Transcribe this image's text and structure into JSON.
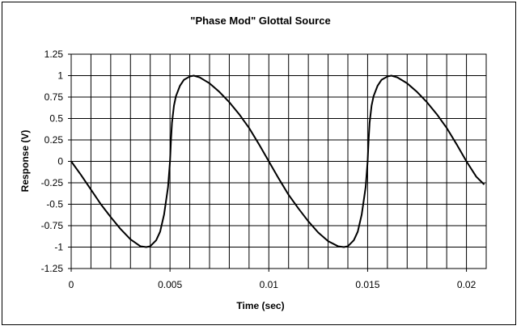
{
  "chart_data": {
    "type": "line",
    "title": "\"Phase Mod\" Glottal Source",
    "xlabel": "Time (sec)",
    "ylabel": "Response (V)",
    "xlim": [
      0,
      0.021
    ],
    "ylim": [
      -1.25,
      1.25
    ],
    "x_ticks": [
      0,
      0.005,
      0.01,
      0.015,
      0.02
    ],
    "x_tick_labels": [
      "0",
      "0.005",
      "0.01",
      "0.015",
      "0.02"
    ],
    "y_ticks": [
      1.25,
      1,
      0.75,
      0.5,
      0.25,
      0,
      -0.25,
      -0.5,
      -0.75,
      -1,
      -1.25
    ],
    "y_tick_labels": [
      "1.25",
      "1",
      "0.75",
      "0.5",
      "0.25",
      "0",
      "-0.25",
      "-0.5",
      "-0.75",
      "-1",
      "-1.25"
    ],
    "grid": true,
    "legend": "none",
    "series": [
      {
        "color": "#000000",
        "x": [
          0,
          0.0005,
          0.001,
          0.0015,
          0.002,
          0.0025,
          0.003,
          0.0035,
          0.0038,
          0.004,
          0.0043,
          0.0045,
          0.0047,
          0.0049,
          0.005,
          0.00505,
          0.0051,
          0.0052,
          0.0053,
          0.0055,
          0.0057,
          0.006,
          0.0062,
          0.0065,
          0.007,
          0.0075,
          0.008,
          0.0085,
          0.009,
          0.0095,
          0.01,
          0.0105,
          0.011,
          0.0115,
          0.012,
          0.0125,
          0.013,
          0.0135,
          0.0138,
          0.014,
          0.0143,
          0.0145,
          0.0147,
          0.0149,
          0.015,
          0.01505,
          0.0151,
          0.0152,
          0.0153,
          0.0155,
          0.0157,
          0.016,
          0.0162,
          0.0165,
          0.017,
          0.0175,
          0.018,
          0.0185,
          0.019,
          0.0195,
          0.02,
          0.0205,
          0.0209
        ],
        "y": [
          0,
          -0.16,
          -0.33,
          -0.5,
          -0.65,
          -0.79,
          -0.91,
          -0.99,
          -1.0,
          -0.99,
          -0.92,
          -0.82,
          -0.62,
          -0.3,
          0.0,
          0.25,
          0.45,
          0.65,
          0.76,
          0.88,
          0.95,
          0.99,
          1.0,
          0.98,
          0.91,
          0.81,
          0.69,
          0.55,
          0.39,
          0.2,
          0.0,
          -0.2,
          -0.39,
          -0.55,
          -0.7,
          -0.83,
          -0.93,
          -0.99,
          -1.0,
          -0.99,
          -0.92,
          -0.82,
          -0.62,
          -0.3,
          0.0,
          0.25,
          0.45,
          0.65,
          0.76,
          0.88,
          0.95,
          0.99,
          1.0,
          0.98,
          0.91,
          0.81,
          0.69,
          0.55,
          0.39,
          0.2,
          0.0,
          -0.18,
          -0.27
        ]
      }
    ]
  }
}
